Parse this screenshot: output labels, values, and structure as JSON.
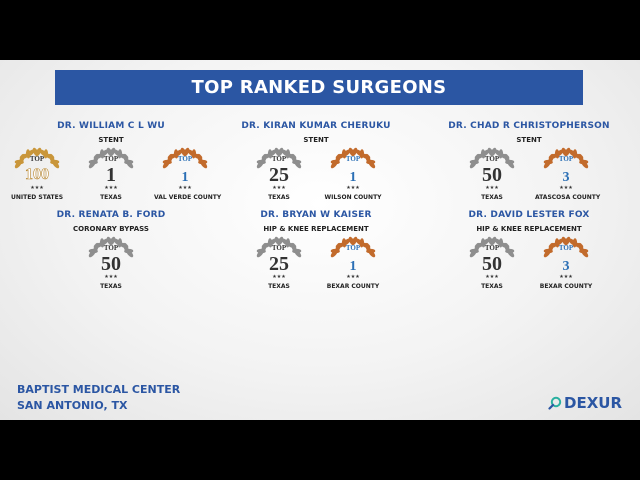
{
  "title": "TOP RANKED SURGEONS",
  "colors": {
    "banner": "#2b56a3",
    "silver": "#8e8e8e",
    "gold": "#c9963a",
    "bronze": "#c26b2c",
    "text": "#2b56a3"
  },
  "surgeons": [
    {
      "name": "DR. WILLIAM C L WU",
      "procedure": "STENT",
      "badges": [
        {
          "rank": "100",
          "region": "UNITED STATES",
          "style": "gold"
        },
        {
          "rank": "1",
          "region": "TEXAS",
          "style": "silver"
        },
        {
          "rank": "1",
          "region": "VAL VERDE COUNTY",
          "style": "bronze"
        }
      ]
    },
    {
      "name": "DR. KIRAN KUMAR CHERUKU",
      "procedure": "STENT",
      "badges": [
        {
          "rank": "25",
          "region": "TEXAS",
          "style": "silver"
        },
        {
          "rank": "1",
          "region": "WILSON COUNTY",
          "style": "bronze"
        }
      ]
    },
    {
      "name": "DR. CHAD R CHRISTOPHERSON",
      "procedure": "STENT",
      "badges": [
        {
          "rank": "50",
          "region": "TEXAS",
          "style": "silver"
        },
        {
          "rank": "3",
          "region": "ATASCOSA COUNTY",
          "style": "bronze"
        }
      ]
    },
    {
      "name": "DR. RENATA B. FORD",
      "procedure": "CORONARY BYPASS",
      "badges": [
        {
          "rank": "50",
          "region": "TEXAS",
          "style": "silver"
        }
      ]
    },
    {
      "name": "DR. BRYAN W KAISER",
      "procedure": "HIP & KNEE REPLACEMENT",
      "badges": [
        {
          "rank": "25",
          "region": "TEXAS",
          "style": "silver"
        },
        {
          "rank": "1",
          "region": "BEXAR COUNTY",
          "style": "bronze"
        }
      ]
    },
    {
      "name": "DR. DAVID LESTER FOX",
      "procedure": "HIP & KNEE REPLACEMENT",
      "badges": [
        {
          "rank": "50",
          "region": "TEXAS",
          "style": "silver"
        },
        {
          "rank": "3",
          "region": "BEXAR COUNTY",
          "style": "bronze"
        }
      ]
    }
  ],
  "badge_top_word": "TOP",
  "badge_stars": "★★★",
  "footer": {
    "line1": "BAPTIST MEDICAL CENTER",
    "line2": "SAN ANTONIO, TX"
  },
  "logo": {
    "text": "DEXUR",
    "icon": "magnifier-icon"
  }
}
